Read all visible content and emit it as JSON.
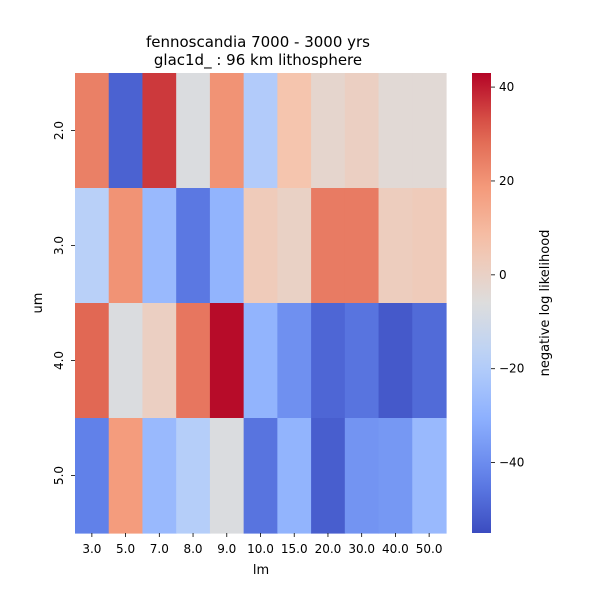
{
  "chart_data": {
    "type": "heatmap",
    "title_line1": "fennoscandia 7000 - 3000 yrs",
    "title_line2": "glac1d_ : 96 km lithosphere",
    "xlabel": "lm",
    "ylabel": "um",
    "x_categories": [
      "3.0",
      "5.0",
      "7.0",
      "8.0",
      "9.0",
      "10.0",
      "15.0",
      "20.0",
      "30.0",
      "40.0",
      "50.0"
    ],
    "y_categories": [
      "2.0",
      "3.0",
      "4.0",
      "5.0"
    ],
    "values": [
      [
        24,
        -50,
        36,
        -7,
        20,
        -20,
        6,
        -2,
        1,
        -4,
        -4
      ],
      [
        -18,
        20,
        -27,
        -45,
        -29,
        3,
        0,
        25,
        25,
        2,
        3
      ],
      [
        29,
        -7,
        1,
        26,
        42,
        -29,
        -39,
        -49,
        -46,
        -52,
        -48
      ],
      [
        -43,
        18,
        -27,
        -19,
        -7,
        -46,
        -29,
        -51,
        -38,
        -37,
        -27
      ]
    ],
    "vmin": -55,
    "vmax": 43,
    "colormap": "coolwarm",
    "colorbar": {
      "label": "negative log likelihood",
      "ticks": [
        40,
        20,
        0,
        -20,
        -40
      ],
      "tick_labels": [
        "40",
        "20",
        "0",
        "−20",
        "−40"
      ]
    }
  }
}
